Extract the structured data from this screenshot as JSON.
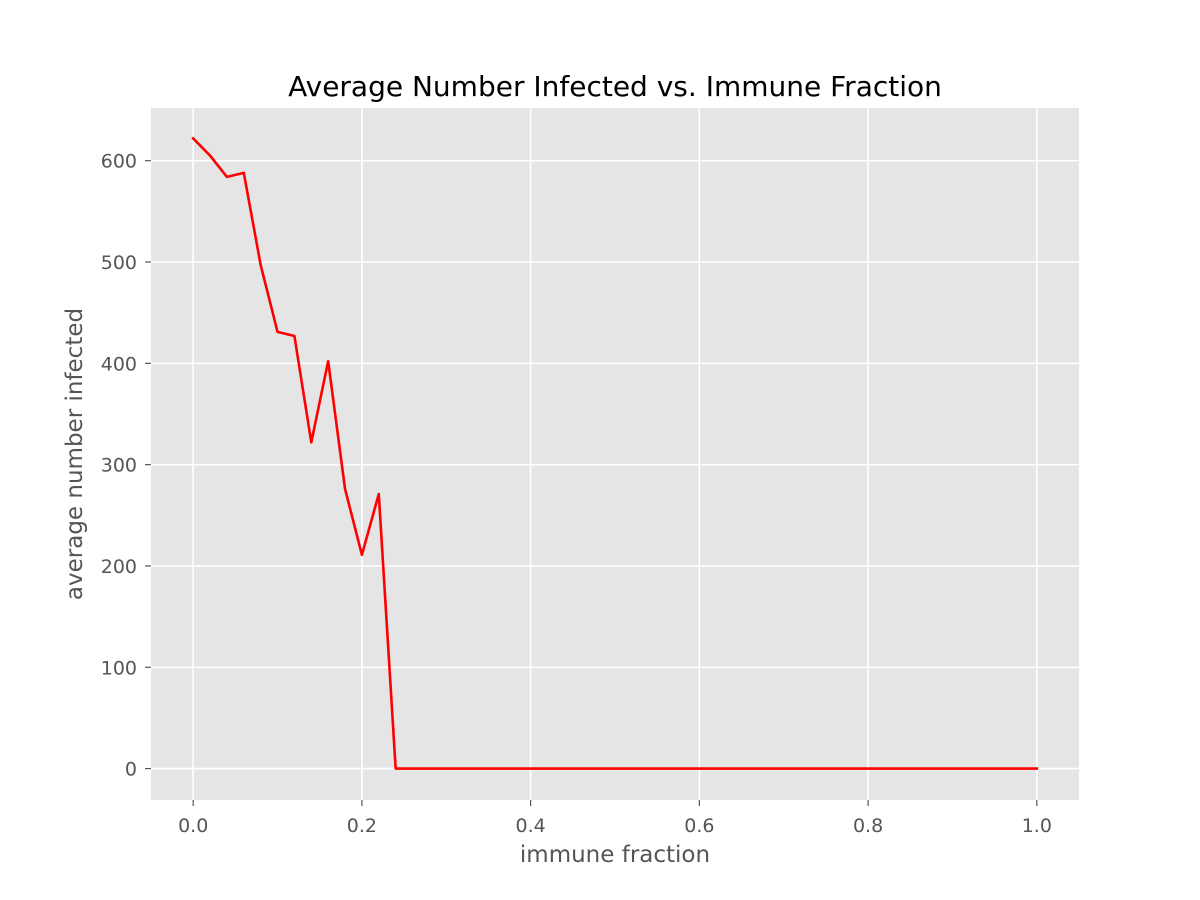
{
  "chart_data": {
    "type": "line",
    "title": "Average Number Infected vs. Immune Fraction",
    "xlabel": "immune fraction",
    "ylabel": "average number infected",
    "xlim": [
      -0.05,
      1.05
    ],
    "ylim": [
      -31,
      652
    ],
    "xticks": [
      0.0,
      0.2,
      0.4,
      0.6,
      0.8,
      1.0
    ],
    "xtick_labels": [
      "0.0",
      "0.2",
      "0.4",
      "0.6",
      "0.8",
      "1.0"
    ],
    "yticks": [
      0,
      100,
      200,
      300,
      400,
      500,
      600
    ],
    "ytick_labels": [
      "0",
      "100",
      "200",
      "300",
      "400",
      "500",
      "600"
    ],
    "grid": true,
    "background_color": "#e5e5e5",
    "grid_color": "#ffffff",
    "series": [
      {
        "color": "#ff0000",
        "x": [
          0.0,
          0.02,
          0.04,
          0.06,
          0.08,
          0.1,
          0.12,
          0.14,
          0.16,
          0.18,
          0.2,
          0.22,
          0.24,
          0.26,
          0.28,
          0.3,
          0.32,
          0.34,
          0.36,
          0.38,
          0.4,
          0.42,
          0.44,
          0.46,
          0.48,
          0.5,
          0.52,
          0.54,
          0.56,
          0.58,
          0.6,
          0.62,
          0.64,
          0.66,
          0.68,
          0.7,
          0.72,
          0.74,
          0.76,
          0.78,
          0.8,
          0.82,
          0.84,
          0.86,
          0.88,
          0.9,
          0.92,
          0.94,
          0.96,
          0.98,
          1.0
        ],
        "y": [
          622,
          605,
          584,
          588,
          497,
          431,
          427,
          322,
          402,
          276,
          211,
          271,
          0,
          0,
          0,
          0,
          0,
          0,
          0,
          0,
          0,
          0,
          0,
          0,
          0,
          0,
          0,
          0,
          0,
          0,
          0,
          0,
          0,
          0,
          0,
          0,
          0,
          0,
          0,
          0,
          0,
          0,
          0,
          0,
          0,
          0,
          0,
          0,
          0,
          0,
          0
        ]
      }
    ]
  }
}
